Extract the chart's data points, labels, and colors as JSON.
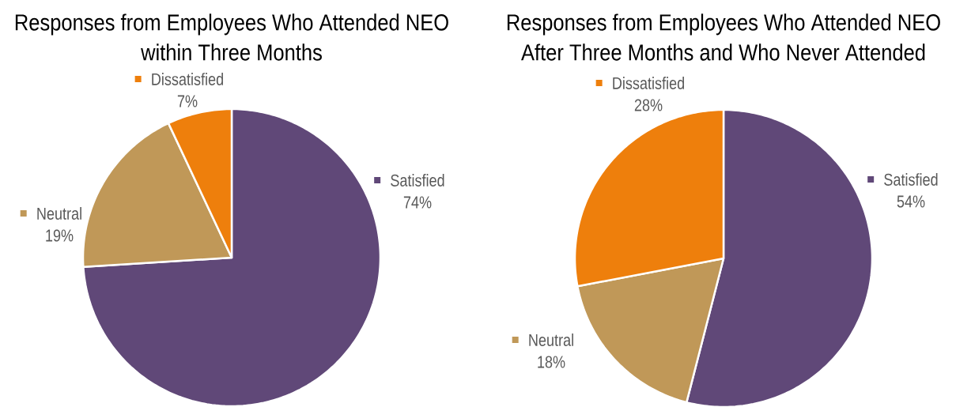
{
  "chart_data": [
    {
      "type": "pie",
      "title": "Responses from Employees Who Attended NEO within Three Months",
      "categories": [
        "Satisfied",
        "Neutral",
        "Dissatisfied"
      ],
      "values": [
        74,
        19,
        7
      ],
      "value_labels": [
        "74%",
        "19%",
        "7%"
      ],
      "colors": [
        "#604878",
        "#c09858",
        "#ee7f0c"
      ],
      "legend": "top"
    },
    {
      "type": "pie",
      "title": "Responses from Employees Who Attended NEO After Three Months and Who Never Attended",
      "categories": [
        "Satisfied",
        "Neutral",
        "Dissatisfied"
      ],
      "values": [
        54,
        18,
        28
      ],
      "value_labels": [
        "54%",
        "18%",
        "28%"
      ],
      "colors": [
        "#604878",
        "#c09858",
        "#ee7f0c"
      ],
      "legend": "top"
    }
  ]
}
